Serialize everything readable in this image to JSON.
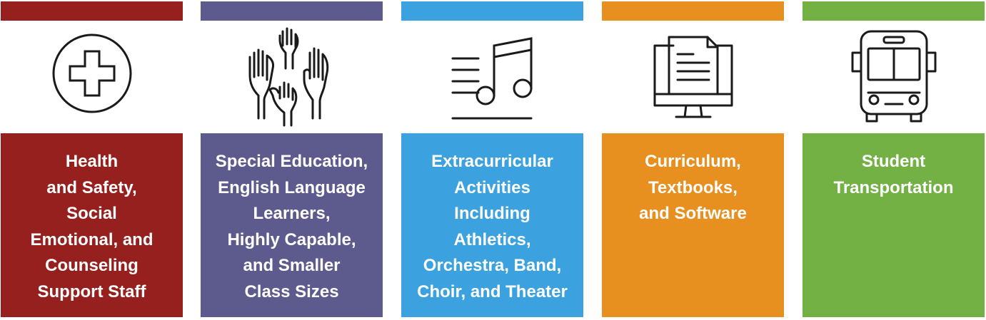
{
  "cards": [
    {
      "color": "#96201e",
      "icon": "medical-cross-icon",
      "lines": [
        "Health",
        "and Safety,",
        "Social",
        "Emotional, and",
        "Counseling",
        "Support Staff"
      ]
    },
    {
      "color": "#5d5a8e",
      "icon": "raised-hands-icon",
      "lines": [
        "Special Education,",
        "English Language",
        "Learners,",
        "Highly Capable,",
        "and Smaller",
        "Class Sizes"
      ]
    },
    {
      "color": "#3ba2df",
      "icon": "music-note-icon",
      "lines": [
        "Extracurricular",
        "Activities",
        "Including",
        "Athletics,",
        "Orchestra, Band,",
        "Choir, and Theater"
      ]
    },
    {
      "color": "#e8901f",
      "icon": "computer-document-icon",
      "lines": [
        "Curriculum,",
        "Textbooks,",
        "and Software"
      ]
    },
    {
      "color": "#73b144",
      "icon": "school-bus-icon",
      "lines": [
        "Student",
        "Transportation"
      ]
    }
  ]
}
